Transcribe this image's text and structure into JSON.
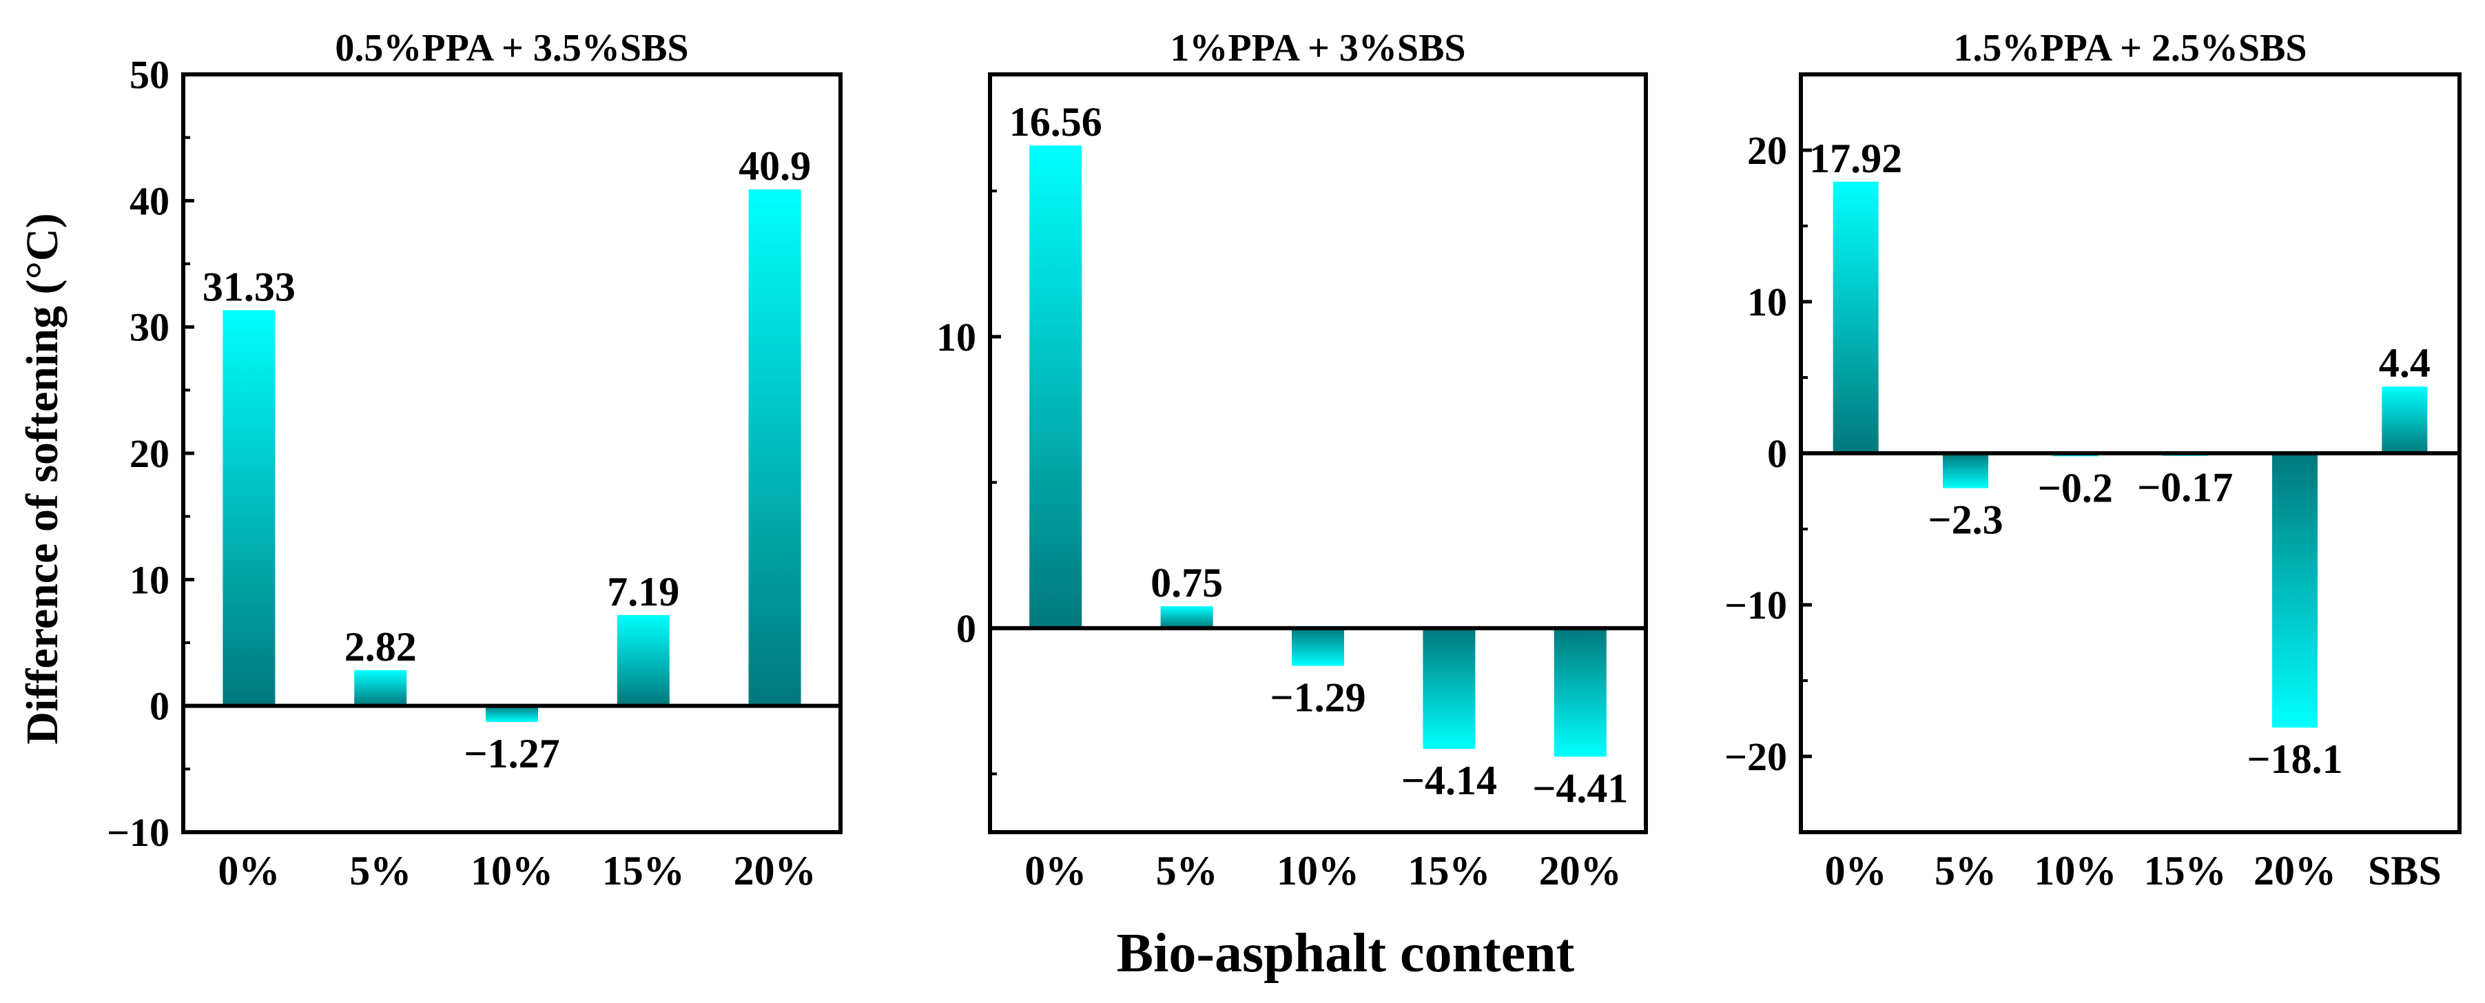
{
  "figure": {
    "ylabel": "Difference of softening (°C)",
    "xlabel": "Bio-asphalt content"
  },
  "colors": {
    "bar_light": "#00ffff",
    "bar_dark": "#00787c",
    "axis": "#000000"
  },
  "chart_data": [
    {
      "type": "bar",
      "title": "0.5%PPA + 3.5%SBS",
      "categories": [
        "0%",
        "5%",
        "10%",
        "15%",
        "20%"
      ],
      "values": [
        31.33,
        2.82,
        -1.27,
        7.19,
        40.9
      ],
      "value_labels": [
        "31.33",
        "2.82",
        "−1.27",
        "7.19",
        "40.9"
      ],
      "ylim": [
        -10,
        50
      ],
      "yticks": [
        -10,
        0,
        10,
        20,
        30,
        40,
        50
      ],
      "ytick_labels": [
        "−10",
        "0",
        "10",
        "20",
        "30",
        "40",
        "50"
      ]
    },
    {
      "type": "bar",
      "title": "1%PPA + 3%SBS",
      "categories": [
        "0%",
        "5%",
        "10%",
        "15%",
        "20%"
      ],
      "values": [
        16.56,
        0.75,
        -1.29,
        -4.14,
        -4.41
      ],
      "value_labels": [
        "16.56",
        "0.75",
        "−1.29",
        "−4.14",
        "−4.41"
      ],
      "ylim": [
        -7,
        19
      ],
      "yticks": [
        0,
        10
      ],
      "ytick_labels": [
        "0",
        "10"
      ]
    },
    {
      "type": "bar",
      "title": "1.5%PPA + 2.5%SBS",
      "categories": [
        "0%",
        "5%",
        "10%",
        "15%",
        "20%",
        "SBS"
      ],
      "values": [
        17.92,
        -2.3,
        -0.2,
        -0.17,
        -18.1,
        4.4
      ],
      "value_labels": [
        "17.92",
        "−2.3",
        "−0.2",
        "−0.17",
        "−18.1",
        "4.4"
      ],
      "ylim": [
        -25,
        25
      ],
      "yticks": [
        -20,
        -10,
        0,
        10,
        20
      ],
      "ytick_labels": [
        "−20",
        "−10",
        "0",
        "10",
        "20"
      ]
    }
  ]
}
